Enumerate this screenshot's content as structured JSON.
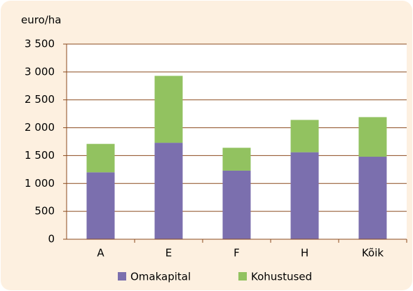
{
  "chart_data": {
    "type": "stacked_bar",
    "y_axis_label": "euro/ha",
    "categories": [
      "A",
      "E",
      "F",
      "H",
      "Kõik"
    ],
    "series": [
      {
        "name": "Omakapital",
        "color": "#7b6fae",
        "values": [
          1200,
          1730,
          1230,
          1560,
          1480
        ]
      },
      {
        "name": "Kohustused",
        "color": "#92c260",
        "values": [
          510,
          1200,
          410,
          580,
          710
        ]
      }
    ],
    "ylim": [
      0,
      3500
    ],
    "yticks": [
      0,
      500,
      {
        "value": 1000,
        "label": "1 000"
      },
      {
        "value": 1500,
        "label": "1 500"
      },
      {
        "value": 2000,
        "label": "2 000"
      },
      {
        "value": 2500,
        "label": "2 500"
      },
      {
        "value": 3000,
        "label": "3 000"
      },
      {
        "value": 3500,
        "label": "3 500"
      }
    ],
    "grid": true,
    "legend": "bottom"
  }
}
